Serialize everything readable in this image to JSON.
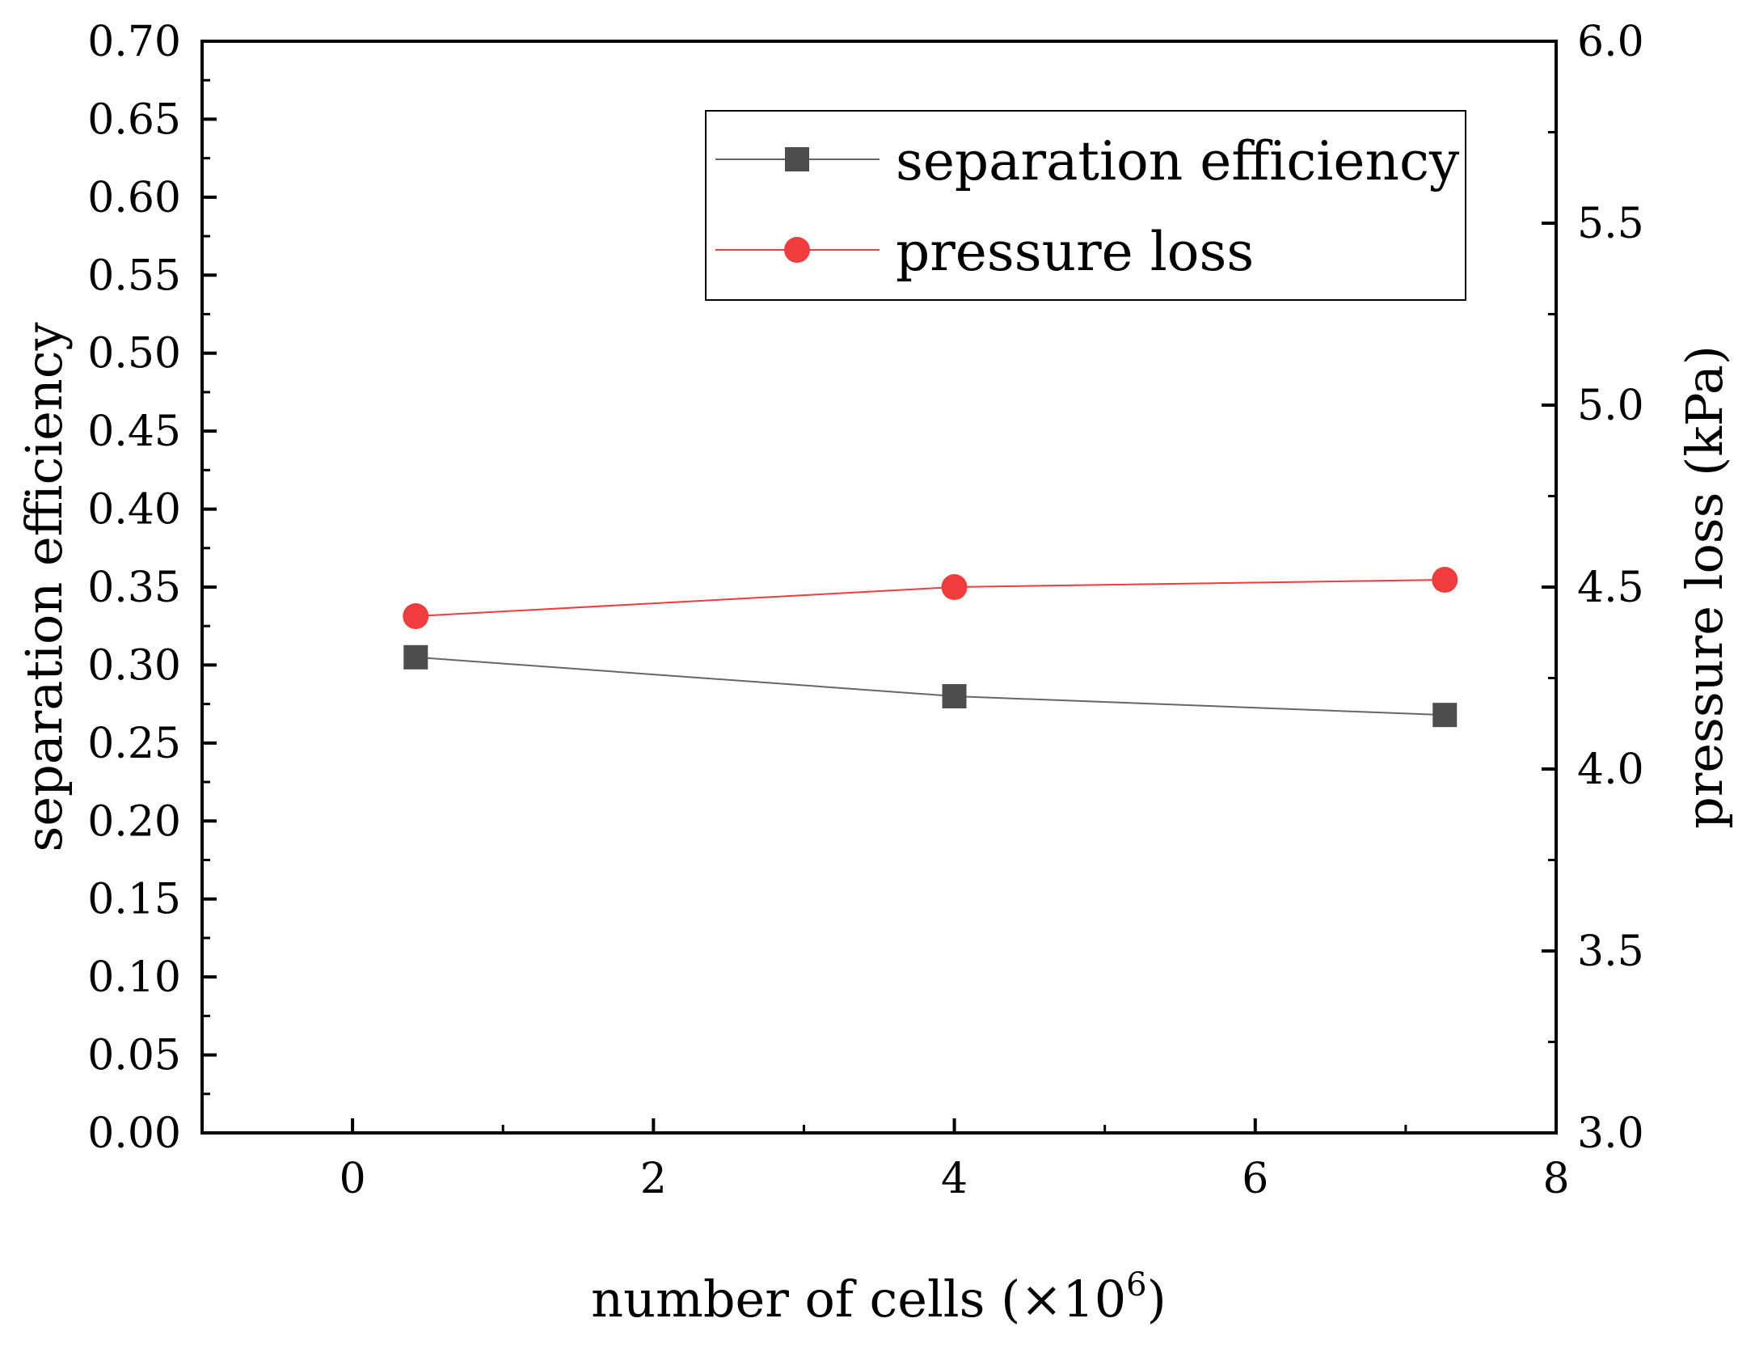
{
  "chart_data": {
    "type": "line",
    "xlabel": "number of cells (×10",
    "xlabel_superscript": "6",
    "xlabel_close": ")",
    "ylabel_left": "separation efficiency",
    "ylabel_right": "pressure loss (kPa)",
    "xlim": [
      -1,
      8
    ],
    "ylim_left": [
      0.0,
      0.7
    ],
    "ylim_right": [
      3.0,
      6.0
    ],
    "x_ticks": [
      "0",
      "2",
      "4",
      "6",
      "8"
    ],
    "y_left_ticks": [
      "0.00",
      "0.05",
      "0.10",
      "0.15",
      "0.20",
      "0.25",
      "0.30",
      "0.35",
      "0.40",
      "0.45",
      "0.50",
      "0.55",
      "0.60",
      "0.65",
      "0.70"
    ],
    "y_right_ticks": [
      "3.0",
      "3.5",
      "4.0",
      "4.5",
      "5.0",
      "5.5",
      "6.0"
    ],
    "legend_position": "top-right",
    "series": [
      {
        "name": "separation efficiency",
        "axis": "left",
        "marker": "square",
        "color": "#4d4d4d",
        "line_color": "#666666",
        "x": [
          0.42,
          4.0,
          7.26
        ],
        "y": [
          0.305,
          0.28,
          0.268
        ]
      },
      {
        "name": "pressure loss",
        "axis": "right",
        "marker": "circle",
        "color": "#f03c3c",
        "line_color": "#f03c3c",
        "x": [
          0.42,
          4.0,
          7.26
        ],
        "y": [
          4.42,
          4.5,
          4.52
        ]
      }
    ]
  }
}
